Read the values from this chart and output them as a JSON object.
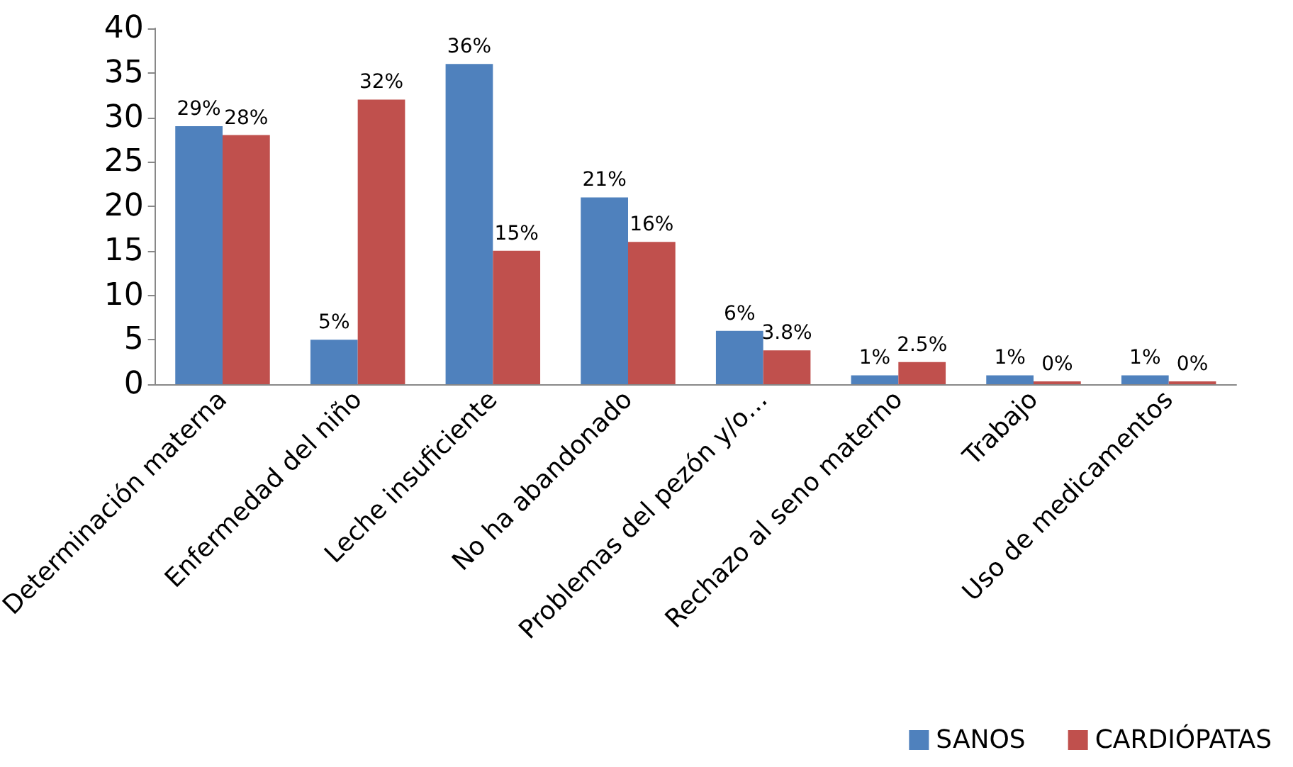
{
  "chart_data": {
    "type": "bar",
    "categories": [
      "Determinación materna",
      "Enfermedad del niño",
      "Leche insuficiente",
      "No ha abandonado",
      "Problemas del pezón y/o…",
      "Rechazo al seno materno",
      "Trabajo",
      "Uso de medicamentos"
    ],
    "series": [
      {
        "name": "SANOS",
        "color": "#4f81bd",
        "values": [
          29,
          5,
          36,
          21,
          6,
          1,
          1,
          1
        ],
        "value_labels": [
          "29%",
          "5%",
          "36%",
          "21%",
          "6%",
          "1%",
          "1%",
          "1%"
        ]
      },
      {
        "name": "CARDIÓPATAS",
        "color": "#c0504d",
        "values": [
          28,
          32,
          15,
          16,
          3.8,
          2.5,
          0,
          0
        ],
        "value_labels": [
          "28%",
          "32%",
          "15%",
          "16%",
          "3.8%",
          "2.5%",
          "0%",
          "0%"
        ]
      }
    ],
    "ylim": [
      0,
      40
    ],
    "yticks": [
      0,
      5,
      10,
      15,
      20,
      25,
      30,
      35,
      40
    ],
    "grid": false,
    "legend": "bottom right"
  }
}
